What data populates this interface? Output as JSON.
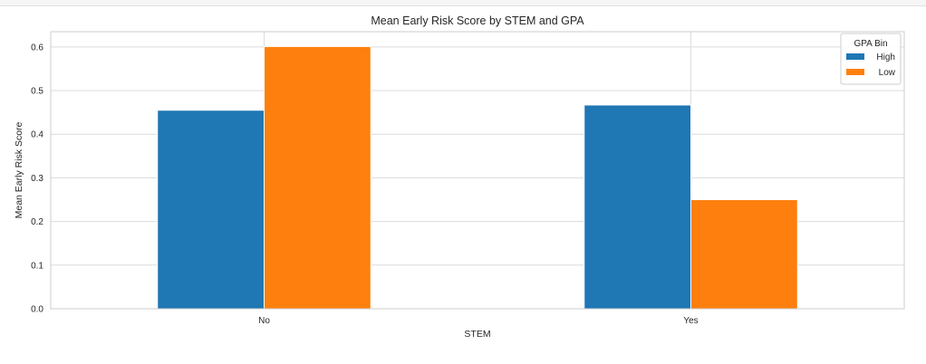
{
  "chart_data": {
    "type": "bar",
    "title": "Mean Early Risk Score by STEM and GPA",
    "xlabel": "STEM",
    "ylabel": "Mean Early Risk Score",
    "categories": [
      "No",
      "Yes"
    ],
    "series": [
      {
        "name": "High",
        "values": [
          0.455,
          0.467
        ],
        "color": "#1f77b4"
      },
      {
        "name": "Low",
        "values": [
          0.601,
          0.25
        ],
        "color": "#ff7f0e"
      }
    ],
    "ylim": [
      0,
      0.635
    ],
    "yticks": [
      "0.0",
      "0.1",
      "0.2",
      "0.3",
      "0.4",
      "0.5",
      "0.6"
    ],
    "grid": true,
    "legend": {
      "title": "GPA Bin",
      "placement": "top-right"
    }
  }
}
